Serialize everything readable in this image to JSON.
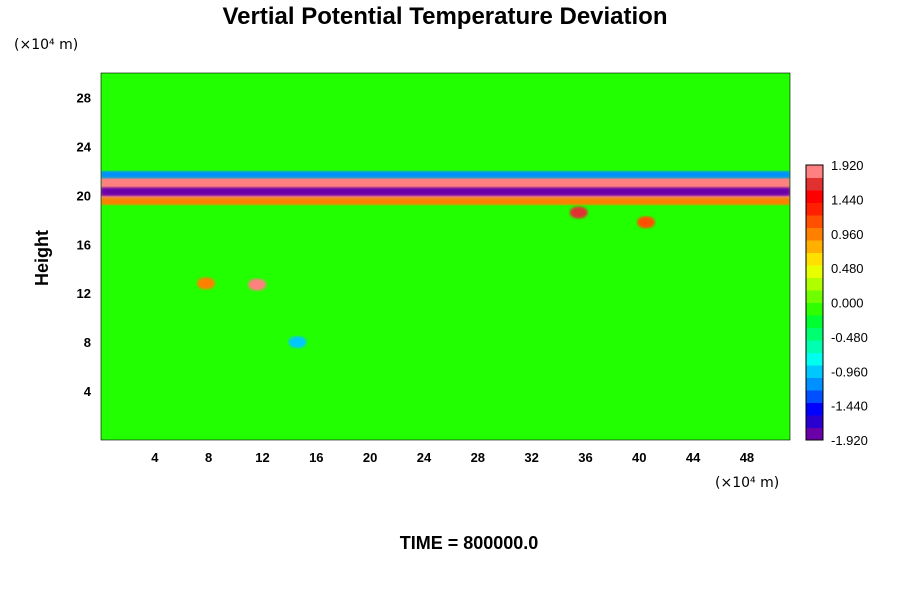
{
  "chart_data": {
    "type": "heatmap",
    "title": "Vertial Potential Temperature Deviation",
    "ylabel": "Height",
    "x_unit_label": "(×10⁴ m)",
    "y_unit_label": "(×10⁴ m)",
    "xlim": [
      0,
      51.2
    ],
    "ylim": [
      0,
      30
    ],
    "x_ticks": [
      4,
      8,
      12,
      16,
      20,
      24,
      28,
      32,
      36,
      40,
      44,
      48
    ],
    "y_ticks": [
      4,
      8,
      12,
      16,
      20,
      24,
      28
    ],
    "colorbar": {
      "range": [
        -1.92,
        1.92
      ],
      "ticks": [
        "1.920",
        "1.440",
        "0.960",
        "0.480",
        "0.000",
        "-0.480",
        "-0.960",
        "-1.440",
        "-1.920"
      ],
      "colors": [
        "#6a00a8",
        "#2a00d0",
        "#0000ff",
        "#0050ff",
        "#0090ff",
        "#00c8ff",
        "#00ffee",
        "#00ffb0",
        "#00ff70",
        "#00ff30",
        "#30ff00",
        "#70ff00",
        "#b0ff00",
        "#e8ff00",
        "#ffe000",
        "#ffb000",
        "#ff8000",
        "#ff5000",
        "#ff2000",
        "#ff0000",
        "#e03030",
        "#ff8080"
      ]
    },
    "field_features": [
      {
        "kind": "band",
        "x_range": [
          0,
          51.2
        ],
        "y_center": 20.6,
        "half_width": 0.9,
        "value": 1.92
      },
      {
        "kind": "band",
        "x_range": [
          0,
          51.2
        ],
        "y_center": 20.3,
        "half_width": 0.35,
        "value": -1.92
      },
      {
        "kind": "band",
        "x_range": [
          0,
          51.2
        ],
        "y_center": 21.7,
        "half_width": 0.3,
        "value": -1.2
      },
      {
        "kind": "band",
        "x_range": [
          0,
          51.2
        ],
        "y_center": 19.5,
        "half_width": 0.3,
        "value": 0.9
      },
      {
        "kind": "blob",
        "x": 11.6,
        "y": 12.7,
        "value": 1.9
      },
      {
        "kind": "blob",
        "x": 7.8,
        "y": 12.8,
        "value": 1.0
      },
      {
        "kind": "blob",
        "x": 14.6,
        "y": 8.0,
        "value": -1.0
      },
      {
        "kind": "blob",
        "x": 35.5,
        "y": 18.6,
        "value": 1.6
      },
      {
        "kind": "blob",
        "x": 40.5,
        "y": 17.8,
        "value": 1.2
      }
    ]
  },
  "footer": {
    "time_label": "TIME = 800000.0"
  }
}
